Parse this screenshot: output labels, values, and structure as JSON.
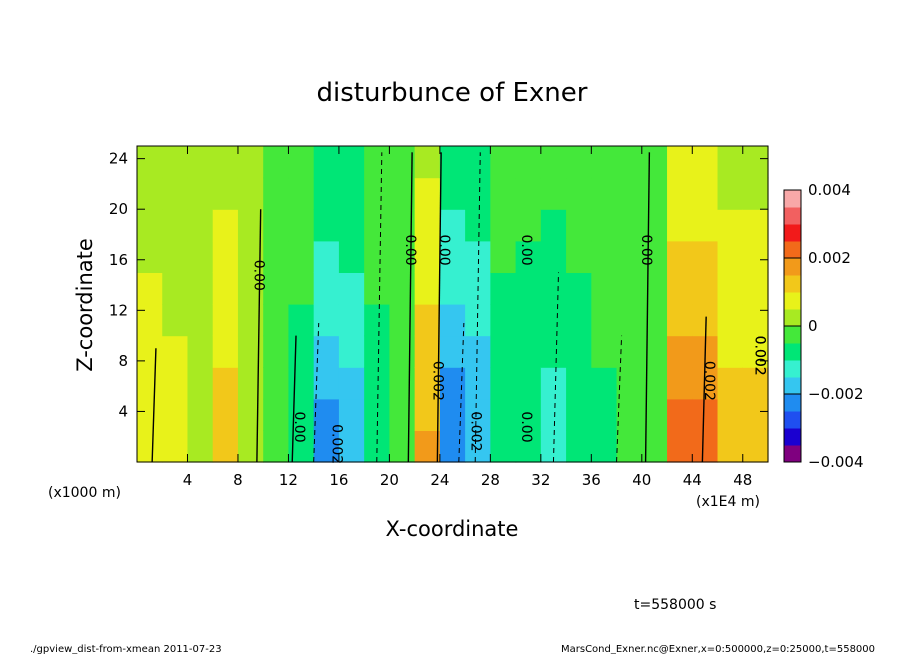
{
  "chart_data": {
    "type": "heatmap",
    "title": "disturbunce of Exner",
    "xlabel": "X-coordinate",
    "ylabel": "Z-coordinate",
    "x_unit_left": "(x1000 m)",
    "x_unit_right": "(x1E4 m)",
    "x_ticks": [
      4,
      8,
      12,
      16,
      20,
      24,
      28,
      32,
      36,
      40,
      44,
      48
    ],
    "y_ticks": [
      4,
      8,
      12,
      16,
      20,
      24
    ],
    "xlim": [
      0,
      50
    ],
    "ylim": [
      0,
      25
    ],
    "colorbar": {
      "labels": [
        "0.004",
        "0.002",
        "0",
        "−0.002",
        "−0.004"
      ],
      "range": [
        -0.004,
        0.004
      ]
    },
    "contour_labels": [
      "0.00",
      "0.00",
      "0.00",
      "0.00",
      "0.00",
      "0.00",
      "0.00",
      "0.002",
      "0.002",
      "0.002",
      "0.002",
      "0.002",
      "0.002"
    ],
    "x_centers": [
      1,
      3,
      5,
      7,
      9,
      11,
      13,
      15,
      17,
      19,
      21,
      23,
      25,
      27,
      29,
      31,
      33,
      35,
      37,
      39,
      41,
      43,
      45,
      47,
      49
    ],
    "profile": [
      0.0009,
      0.0007,
      0.0002,
      0.0012,
      0.0001,
      -0.0002,
      -0.0008,
      -0.0022,
      -0.0018,
      -0.0008,
      -0.0003,
      0.0016,
      -0.0024,
      -0.002,
      -0.0009,
      -0.001,
      -0.0012,
      -0.0009,
      -0.0006,
      -0.0003,
      -0.0001,
      0.0022,
      0.0022,
      0.0012,
      0.0012
    ],
    "time_label": "t=558000 s"
  },
  "footer": {
    "left": "./gpview_dist-from-xmean   2011-07-23",
    "right": "MarsCond_Exner.nc@Exner,x=0:500000,z=0:25000,t=558000"
  }
}
